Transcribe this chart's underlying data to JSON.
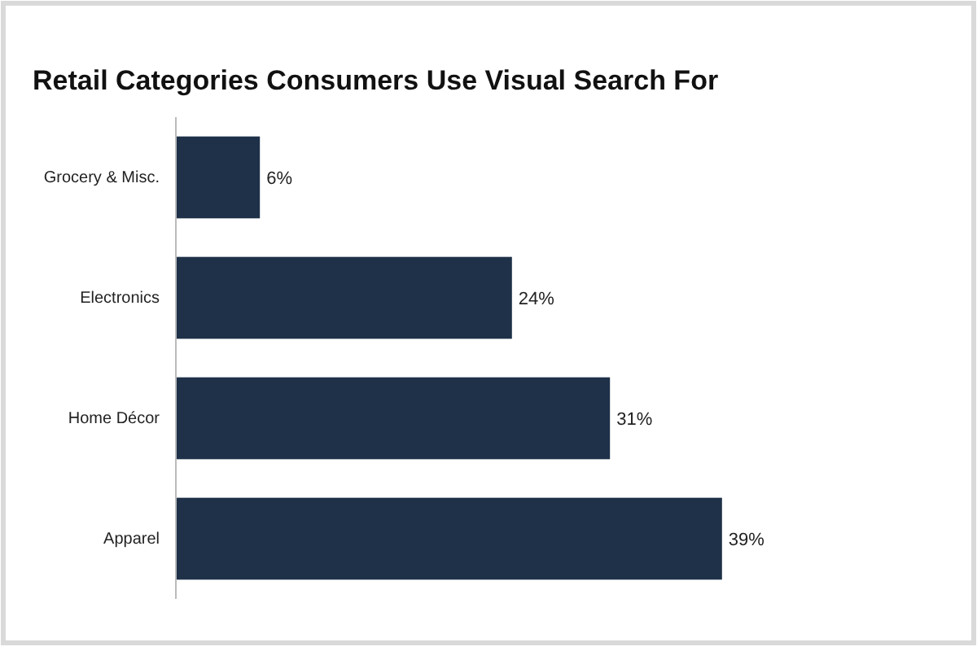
{
  "chart_data": {
    "type": "bar",
    "orientation": "horizontal",
    "title": "Retail Categories Consumers Use Visual Search For",
    "categories": [
      "Grocery & Misc.",
      "Electronics",
      "Home Décor",
      "Apparel"
    ],
    "values": [
      6,
      24,
      31,
      39
    ],
    "color": "#1e3149",
    "value_labels": [
      "6%",
      "24%",
      "31%",
      "39%"
    ],
    "tick_labels": "y"
  }
}
